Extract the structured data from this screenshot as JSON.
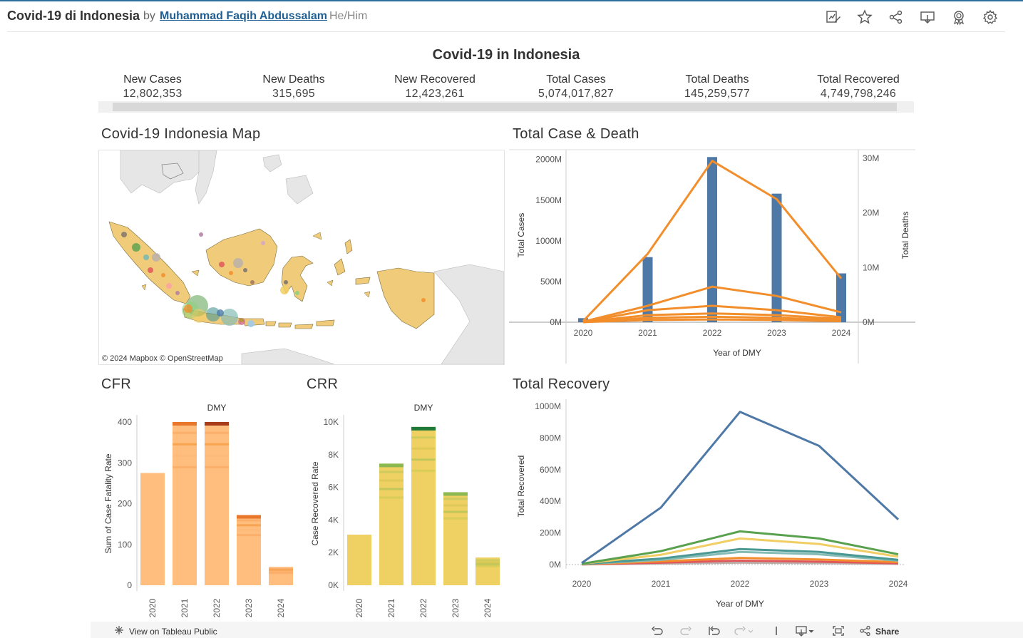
{
  "header": {
    "title": "Covid-19 di Indonesia",
    "by": "by",
    "author": "Muhammad Faqih Abdussalam",
    "pronoun": "He/Him",
    "icons": [
      "edit-icon",
      "star-icon",
      "share-icon",
      "download-icon",
      "badge-icon",
      "settings-icon"
    ]
  },
  "dashboard": {
    "title": "Covid-19 in Indonesia",
    "kpis": [
      {
        "label": "New Cases",
        "value": "12,802,353"
      },
      {
        "label": "New Deaths",
        "value": "315,695"
      },
      {
        "label": "New Recovered",
        "value": "12,423,261"
      },
      {
        "label": "Total Cases",
        "value": "5,074,017,827"
      },
      {
        "label": "Total Deaths",
        "value": "145,259,577"
      },
      {
        "label": "Total Recovered",
        "value": "4,749,798,246"
      }
    ]
  },
  "map": {
    "title": "Covid-19 Indonesia Map",
    "credit": "© 2024 Mapbox  © OpenStreetMap"
  },
  "sections": {
    "case_death": "Total Case & Death",
    "cfr": "CFR",
    "crr": "CRR",
    "recovery": "Total Recovery"
  },
  "chart_data": [
    {
      "id": "case_death",
      "type": "bar+line",
      "title": "Total Case & Death",
      "categories": [
        "2020",
        "2021",
        "2022",
        "2023",
        "2024"
      ],
      "xlabel": "Year of DMY",
      "ylabel": "Total Cases",
      "y2label": "Total Deaths",
      "yticks": [
        "0M",
        "500M",
        "1000M",
        "1500M",
        "2000M"
      ],
      "ylim": [
        0,
        2050
      ],
      "y2ticks": [
        "0M",
        "10M",
        "20M",
        "30M"
      ],
      "y2lim": [
        0,
        30.5
      ],
      "bars": {
        "name": "Total Cases",
        "values": [
          50,
          800,
          2030,
          1580,
          600
        ],
        "color": "#4e79a7"
      },
      "lines": [
        {
          "values": [
            0.2,
            12.5,
            29.5,
            22.5,
            8.0
          ]
        },
        {
          "values": [
            0.1,
            3.0,
            6.5,
            4.8,
            1.8
          ]
        },
        {
          "values": [
            0.05,
            2.2,
            3.0,
            2.2,
            0.9
          ]
        },
        {
          "values": [
            0.03,
            1.3,
            1.6,
            1.3,
            0.6
          ]
        },
        {
          "values": [
            0.02,
            0.8,
            1.0,
            0.8,
            0.4
          ]
        },
        {
          "values": [
            0.01,
            0.4,
            0.5,
            0.4,
            0.2
          ]
        }
      ],
      "line_color": "#f28e2b"
    },
    {
      "id": "cfr",
      "type": "bar",
      "title": "CFR",
      "header": "DMY",
      "categories": [
        "2020",
        "2021",
        "2022",
        "2023",
        "2024"
      ],
      "ylabel": "Sum of Case Fatality Rate",
      "yticks": [
        "0",
        "100",
        "200",
        "300",
        "400"
      ],
      "ylim": [
        0,
        400
      ],
      "values": [
        275,
        400,
        400,
        172,
        45
      ],
      "color": "#ffbe7d",
      "top_color": "#e8762b",
      "dark_top": "#a83d1c"
    },
    {
      "id": "crr",
      "type": "bar",
      "title": "CRR",
      "header": "DMY",
      "categories": [
        "2020",
        "2021",
        "2022",
        "2023",
        "2024"
      ],
      "ylabel": "Case Recovered Rate",
      "yticks": [
        "0K",
        "2K",
        "4K",
        "6K",
        "8K",
        "10K"
      ],
      "ylim": [
        0,
        10000
      ],
      "values": [
        3100,
        7450,
        9700,
        5700,
        1700
      ],
      "color": "#efd063",
      "top_color": "#8cb850",
      "dark_top": "#1f7a3a"
    },
    {
      "id": "recovery",
      "type": "line",
      "title": "Total Recovery",
      "categories": [
        "2020",
        "2021",
        "2022",
        "2023",
        "2024"
      ],
      "xlabel": "Year of DMY",
      "ylabel": "Total Recovered",
      "yticks": [
        "0M",
        "200M",
        "400M",
        "600M",
        "800M",
        "1000M"
      ],
      "ylim": [
        0,
        1000
      ],
      "series": [
        {
          "values": [
            10,
            360,
            965,
            750,
            285
          ],
          "color": "#4e79a7"
        },
        {
          "values": [
            5,
            85,
            210,
            165,
            65
          ],
          "color": "#59a14f"
        },
        {
          "values": [
            5,
            62,
            165,
            130,
            50
          ],
          "color": "#f1ce63"
        },
        {
          "values": [
            4,
            38,
            98,
            80,
            30
          ],
          "color": "#499894"
        },
        {
          "values": [
            3,
            30,
            80,
            65,
            25
          ],
          "color": "#86bcb6"
        },
        {
          "values": [
            2,
            20,
            42,
            32,
            15
          ],
          "color": "#f28e2b"
        },
        {
          "values": [
            1,
            12,
            25,
            18,
            8
          ],
          "color": "#e15759"
        },
        {
          "values": [
            1,
            6,
            12,
            9,
            4
          ],
          "color": "#bab0ac"
        }
      ]
    }
  ],
  "bottom": {
    "view_label": "View on Tableau Public",
    "share_label": "Share"
  }
}
